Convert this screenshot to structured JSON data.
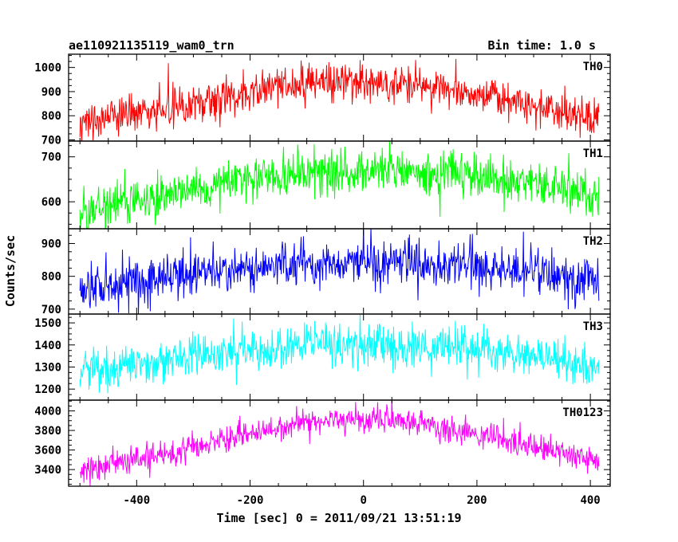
{
  "header": {
    "title": "ae110921135119_wam0_trn",
    "bin_time": "Bin time: 1.0 s"
  },
  "chart_data": {
    "type": "line",
    "title": "ae110921135119_wam0_trn",
    "subtitle": "Bin time: 1.0 s",
    "xlabel": "Time [sec] 0 = 2011/09/21 13:51:19",
    "ylabel": "Counts/sec",
    "xlim": [
      -520,
      435
    ],
    "x_ticks": [
      -400,
      -200,
      0,
      200,
      400
    ],
    "x_range_data": [
      -500,
      415
    ],
    "bin_time_s": 1.0,
    "panels": [
      {
        "name": "TH0",
        "color": "#ff0000",
        "ylim": [
          695,
          1055
        ],
        "yticks": [
          700,
          800,
          900,
          1000
        ],
        "trend_x": [
          -500,
          -400,
          -300,
          -200,
          -100,
          0,
          100,
          200,
          300,
          415
        ],
        "trend_y": [
          775,
          810,
          850,
          895,
          930,
          945,
          930,
          890,
          845,
          790
        ],
        "noise_sd": 40
      },
      {
        "name": "TH1",
        "color": "#00ff00",
        "ylim": [
          540,
          735
        ],
        "yticks": [
          600,
          700
        ],
        "trend_x": [
          -500,
          -400,
          -300,
          -200,
          -100,
          0,
          100,
          200,
          300,
          415
        ],
        "trend_y": [
          580,
          600,
          625,
          650,
          665,
          670,
          665,
          655,
          640,
          615
        ],
        "noise_sd": 25
      },
      {
        "name": "TH2",
        "color": "#0000ff",
        "ylim": [
          685,
          945
        ],
        "yticks": [
          700,
          800,
          900
        ],
        "trend_x": [
          -500,
          -400,
          -300,
          -200,
          -100,
          0,
          100,
          200,
          300,
          415
        ],
        "trend_y": [
          765,
          785,
          805,
          825,
          840,
          845,
          840,
          830,
          810,
          785
        ],
        "noise_sd": 35
      },
      {
        "name": "TH3",
        "color": "#00ffff",
        "ylim": [
          1150,
          1540
        ],
        "yticks": [
          1200,
          1300,
          1400,
          1500
        ],
        "trend_x": [
          -500,
          -400,
          -300,
          -200,
          -100,
          0,
          100,
          200,
          300,
          415
        ],
        "trend_y": [
          1280,
          1310,
          1345,
          1375,
          1395,
          1400,
          1395,
          1375,
          1340,
          1300
        ],
        "noise_sd": 50
      },
      {
        "name": "TH0123",
        "color": "#ff00ff",
        "ylim": [
          3230,
          4110
        ],
        "yticks": [
          3400,
          3600,
          3800,
          4000
        ],
        "trend_x": [
          -500,
          -400,
          -300,
          -200,
          -100,
          0,
          100,
          200,
          300,
          415
        ],
        "trend_y": [
          3380,
          3500,
          3630,
          3780,
          3880,
          3920,
          3880,
          3770,
          3630,
          3490
        ],
        "noise_sd": 70
      }
    ]
  }
}
